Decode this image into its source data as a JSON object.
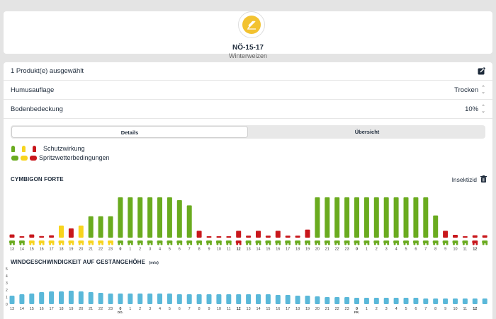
{
  "field": {
    "name": "NÖ-15-17",
    "crop": "Winterweizen"
  },
  "selection": {
    "label": "1 Produkt(e) ausgewählt"
  },
  "settings": [
    {
      "label": "Humusauflage",
      "value": "Trocken"
    },
    {
      "label": "Bodenbedeckung",
      "value": "10%"
    }
  ],
  "tabs": [
    {
      "label": "Details",
      "active": true
    },
    {
      "label": "Übersicht",
      "active": false
    }
  ],
  "legend": {
    "protection": "Schutzwirkung",
    "spray": "Spritzwetterbedingungen"
  },
  "colors": {
    "green": "#6aab1f",
    "yellow": "#f7d41e",
    "red": "#c8171c",
    "blue": "#5ab8d9",
    "bg": "#e4e4e4"
  },
  "hour_labels": [
    "13",
    "14",
    "15",
    "16",
    "17",
    "18",
    "19",
    "20",
    "21",
    "22",
    "23",
    "0",
    "1",
    "2",
    "3",
    "4",
    "5",
    "6",
    "7",
    "8",
    "9",
    "10",
    "11",
    "12",
    "13",
    "14",
    "15",
    "16",
    "17",
    "18",
    "19",
    "20",
    "21",
    "22",
    "23",
    "0",
    "1",
    "2",
    "3",
    "4",
    "5",
    "6",
    "7",
    "8",
    "9",
    "10",
    "11",
    "12"
  ],
  "day_labels": {
    "do": "DO.",
    "fr": "FR."
  },
  "product": {
    "name": "CYMBIGON FORTE",
    "type": "Insektizid",
    "chart_data": {
      "type": "bar",
      "ylim": [
        0,
        1
      ],
      "values": [
        0.08,
        0.02,
        0.08,
        0.04,
        0.06,
        0.3,
        0.23,
        0.3,
        0.53,
        0.53,
        0.53,
        1,
        1,
        1,
        1,
        1,
        1,
        0.93,
        0.8,
        0.17,
        0.03,
        0.03,
        0.03,
        0.17,
        0.05,
        0.17,
        0.05,
        0.17,
        0.05,
        0.05,
        0.2,
        1,
        1,
        1,
        1,
        1,
        1,
        1,
        1,
        1,
        1,
        1,
        1,
        0.55,
        0.17,
        0.07,
        0.03,
        0.06,
        0.06
      ],
      "colors": [
        "red",
        "red",
        "red",
        "red",
        "red",
        "yellow",
        "red",
        "yellow",
        "green",
        "green",
        "green",
        "green",
        "green",
        "green",
        "green",
        "green",
        "green",
        "green",
        "green",
        "red",
        "red",
        "red",
        "red",
        "red",
        "red",
        "red",
        "red",
        "red",
        "red",
        "red",
        "red",
        "green",
        "green",
        "green",
        "green",
        "green",
        "green",
        "green",
        "green",
        "green",
        "green",
        "green",
        "green",
        "green",
        "red",
        "red",
        "red",
        "red",
        "red"
      ],
      "spray": [
        "green",
        "green",
        "yellow",
        "yellow",
        "yellow",
        "yellow",
        "yellow",
        "yellow",
        "yellow",
        "yellow",
        "yellow",
        "green",
        "green",
        "green",
        "green",
        "green",
        "green",
        "green",
        "green",
        "green",
        "green",
        "green",
        "green",
        "red",
        "green",
        "green",
        "green",
        "green",
        "green",
        "green",
        "green",
        "green",
        "green",
        "green",
        "green",
        "green",
        "green",
        "green",
        "green",
        "green",
        "green",
        "green",
        "green",
        "green",
        "green",
        "green",
        "green",
        "red",
        "green"
      ]
    }
  },
  "wind": {
    "title": "WINDGESCHWINDIGKEIT AUF GESTÄNGEHÖHE",
    "unit": "(m/s)",
    "chart_data": {
      "type": "bar",
      "ylim": [
        0,
        5
      ],
      "yticks": [
        "5",
        "4",
        "3",
        "2",
        "1",
        "0"
      ],
      "values": [
        1.2,
        1.4,
        1.5,
        1.7,
        1.8,
        1.8,
        1.9,
        1.8,
        1.7,
        1.6,
        1.5,
        1.5,
        1.5,
        1.5,
        1.5,
        1.5,
        1.5,
        1.4,
        1.4,
        1.4,
        1.4,
        1.4,
        1.4,
        1.4,
        1.4,
        1.4,
        1.4,
        1.3,
        1.3,
        1.2,
        1.2,
        1.1,
        1.0,
        1.0,
        1.0,
        0.9,
        0.9,
        0.9,
        0.9,
        0.9,
        0.9,
        0.9,
        0.8,
        0.8,
        0.8,
        0.8,
        0.8,
        0.8,
        0.8
      ]
    }
  }
}
